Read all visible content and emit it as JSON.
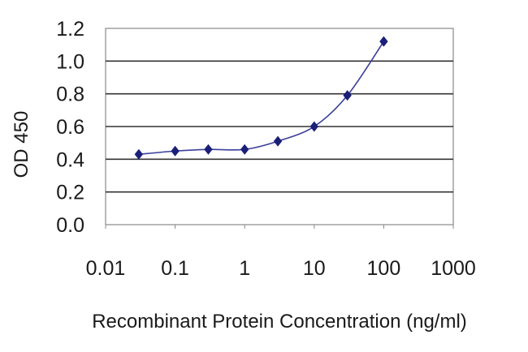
{
  "chart_data": {
    "type": "line",
    "xscale": "log",
    "xlabel": "Recombinant Protein Concentration (ng/ml)",
    "ylabel": "OD 450",
    "xlim": [
      0.01,
      1000
    ],
    "ylim": [
      0.0,
      1.2
    ],
    "x_ticks": [
      "0.01",
      "0.1",
      "1",
      "10",
      "100",
      "1000"
    ],
    "y_ticks": [
      "0.0",
      "0.2",
      "0.4",
      "0.6",
      "0.8",
      "1.0",
      "1.2"
    ],
    "grid": "horizontal",
    "series": [
      {
        "x": [
          0.03,
          0.1,
          0.3,
          1,
          3,
          10,
          30,
          100
        ],
        "y": [
          0.43,
          0.45,
          0.46,
          0.46,
          0.51,
          0.6,
          0.79,
          1.12
        ]
      }
    ],
    "colors": {
      "line": "#3a3f9a",
      "marker": "#1a1f7a",
      "grid": "#333333",
      "frame": "#888888"
    }
  }
}
